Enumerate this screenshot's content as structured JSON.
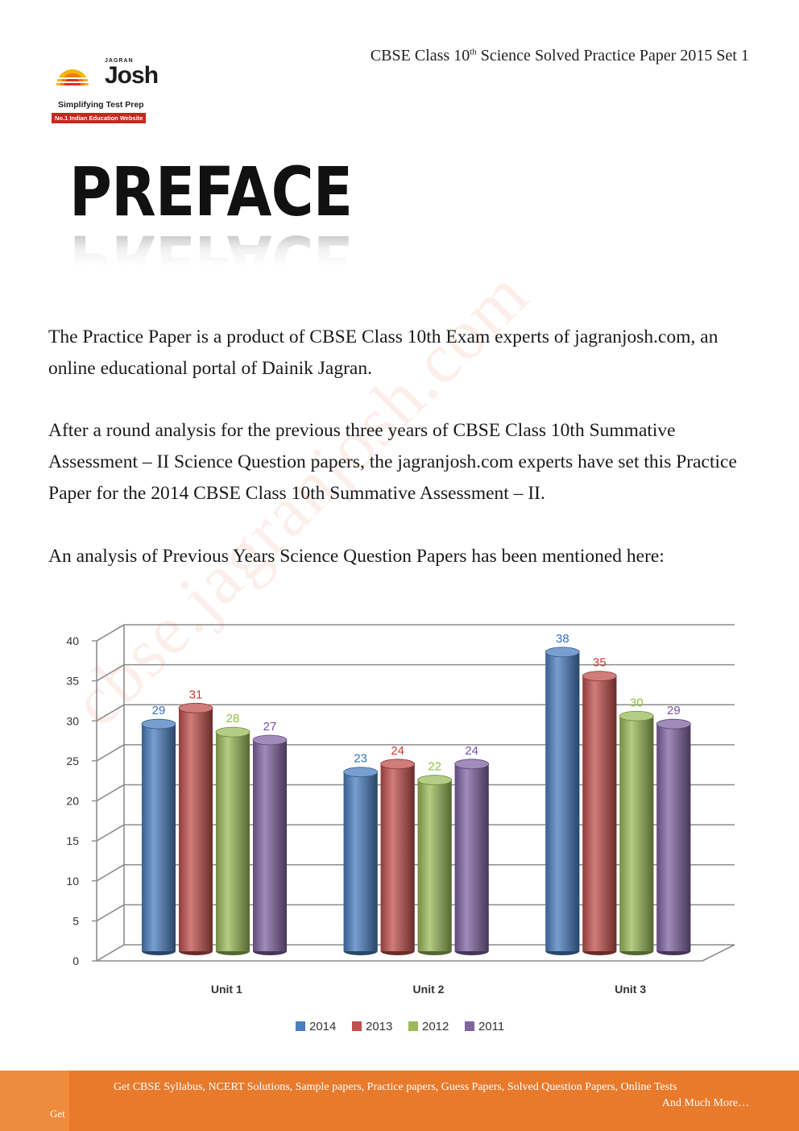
{
  "header": {
    "logo_small": "JAGRAN",
    "logo_brand": "Josh",
    "tagline": "Simplifying Test Prep",
    "badge": "No.1 Indian Education Website",
    "doc_title_pre": "CBSE Class 10",
    "doc_title_sup": "th",
    "doc_title_post": " Science Solved Practice Paper 2015 Set 1"
  },
  "heading": "PREFACE",
  "paragraphs": [
    "The Practice Paper is a product of CBSE Class 10th Exam experts of jagranjosh.com, an online educational portal of Dainik Jagran.",
    "After a round analysis for the previous three years of CBSE Class 10th Summative Assessment – II Science Question papers, the jagranjosh.com experts have set this Practice Paper for the 2014 CBSE Class 10th Summative Assessment – II.",
    "An analysis of Previous Years Science Question Papers has been mentioned here:"
  ],
  "watermark": "cbse.jagranjosh.com",
  "chart_data": {
    "type": "bar",
    "categories": [
      "Unit 1",
      "Unit 2",
      "Unit 3"
    ],
    "series": [
      {
        "name": "2014",
        "values": [
          29,
          23,
          38
        ],
        "color": "#4a7ebf"
      },
      {
        "name": "2013",
        "values": [
          31,
          24,
          35
        ],
        "color": "#c0504d"
      },
      {
        "name": "2012",
        "values": [
          28,
          22,
          30
        ],
        "color": "#9bbb59"
      },
      {
        "name": "2011",
        "values": [
          27,
          24,
          29
        ],
        "color": "#8064a2"
      }
    ],
    "ylim": [
      0,
      40
    ],
    "yticks": [
      0,
      5,
      10,
      15,
      20,
      25,
      30,
      35,
      40
    ],
    "grid": true,
    "legend": "bottom",
    "label_colors": [
      "#2e75c6",
      "#d0392e",
      "#8fc43b",
      "#7a4fb0"
    ]
  },
  "footer": {
    "line1": "Get CBSE Syllabus, NCERT Solutions, Sample papers, Practice papers, Guess Papers, Solved Question Papers, Online Tests",
    "line2": "And Much More…",
    "side_label": "Get"
  }
}
